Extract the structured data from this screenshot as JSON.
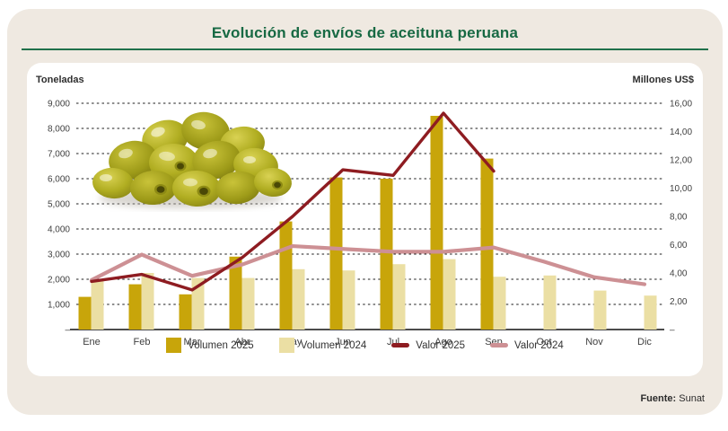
{
  "title": "Evolución de envíos de aceituna peruana",
  "source": {
    "label": "Fuente:",
    "value": " Sunat"
  },
  "colors": {
    "card_bg": "#efe9e1",
    "panel_bg": "#ffffff",
    "title_green": "#176943",
    "rule_green": "#20714a",
    "bar_2025": "#c8a50a",
    "bar_2024": "#ebdfa4",
    "line_2025": "#8e1c21",
    "line_2024": "#cd9094"
  },
  "chart_data": {
    "type": "bar",
    "subtype": "grouped-bars-with-lines",
    "title": "Evolución de envíos de aceituna peruana",
    "categories": [
      "Ene",
      "Feb",
      "Mar",
      "Abr",
      "May",
      "Jun",
      "Jul",
      "Ago",
      "Sep",
      "Oct",
      "Nov",
      "Dic"
    ],
    "series": [
      {
        "name": "Volumen 2025",
        "kind": "bar",
        "axis": "left",
        "color": "#c8a50a",
        "values": [
          1300,
          1800,
          1400,
          2900,
          4300,
          6050,
          6000,
          8500,
          6800,
          null,
          null,
          null
        ]
      },
      {
        "name": "Volumen 2024",
        "kind": "bar",
        "axis": "left",
        "color": "#ebdfa4",
        "values": [
          1950,
          2250,
          2050,
          2050,
          2400,
          2350,
          2600,
          2800,
          2100,
          2150,
          1550,
          1350
        ]
      },
      {
        "name": "Valor 2025",
        "kind": "line",
        "axis": "right",
        "color": "#8e1c21",
        "values": [
          3.4,
          3.9,
          2.8,
          5.1,
          8.0,
          11.3,
          10.9,
          15.3,
          11.2,
          null,
          null,
          null
        ]
      },
      {
        "name": "Valor 2024",
        "kind": "line",
        "axis": "right",
        "color": "#cd9094",
        "values": [
          3.5,
          5.3,
          3.8,
          4.6,
          5.9,
          5.7,
          5.5,
          5.5,
          5.8,
          4.8,
          3.7,
          3.2
        ]
      }
    ],
    "left_axis": {
      "title": "Toneladas",
      "min": 0,
      "max": 9000,
      "step": 1000,
      "ticks": [
        {
          "value": 9000,
          "label": "9,000"
        },
        {
          "value": 8000,
          "label": "8,000"
        },
        {
          "value": 7000,
          "label": "7,000"
        },
        {
          "value": 6000,
          "label": "6,000"
        },
        {
          "value": 5000,
          "label": "5,000"
        },
        {
          "value": 4000,
          "label": "4,000"
        },
        {
          "value": 3000,
          "label": "3,000"
        },
        {
          "value": 2000,
          "label": "2,000"
        },
        {
          "value": 1000,
          "label": "1,000"
        },
        {
          "value": 0,
          "label": "–"
        }
      ]
    },
    "right_axis": {
      "title": "Millones US$",
      "min": 0,
      "max": 16,
      "step": 2,
      "ticks": [
        {
          "value": 16,
          "label": "16,00"
        },
        {
          "value": 14,
          "label": "14,00"
        },
        {
          "value": 12,
          "label": "12,00"
        },
        {
          "value": 10,
          "label": "10,00"
        },
        {
          "value": 8,
          "label": "8,00"
        },
        {
          "value": 6,
          "label": "6,00"
        },
        {
          "value": 4,
          "label": "4,00"
        },
        {
          "value": 2,
          "label": "2,00"
        },
        {
          "value": 0,
          "label": "–"
        }
      ]
    },
    "grid": "horizontal-dotted",
    "legend_position": "bottom"
  }
}
